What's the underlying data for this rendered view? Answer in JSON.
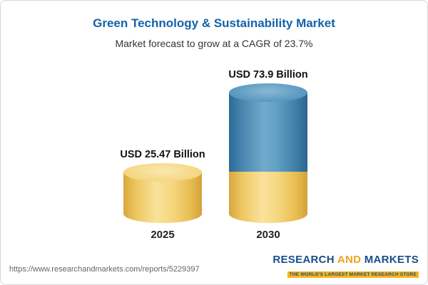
{
  "chart_data": {
    "type": "bar",
    "subtype": "3d-cylinder",
    "title": "Green Technology & Sustainability Market",
    "subtitle": "Market forecast to grow at a CAGR of 23.7%",
    "categories": [
      "2025",
      "2030"
    ],
    "values": [
      25.47,
      73.9
    ],
    "value_labels": [
      "USD 25.47 Billion",
      "USD 73.9 Billion"
    ],
    "unit": "USD Billion",
    "cagr_percent": 23.7,
    "legend": "none",
    "axis": "none",
    "colors": {
      "title_blue": "#1262aa",
      "bar_gold": "#f2cf6e",
      "bar_blue": "#4b89b2"
    }
  },
  "footer": {
    "url": "https://www.researchandmarkets.com/reports/5229397",
    "brand": {
      "word1": "RESEARCH",
      "word2": "AND",
      "word3": "MARKETS",
      "tagline": "THE WORLD'S LARGEST MARKET RESEARCH STORE"
    }
  }
}
